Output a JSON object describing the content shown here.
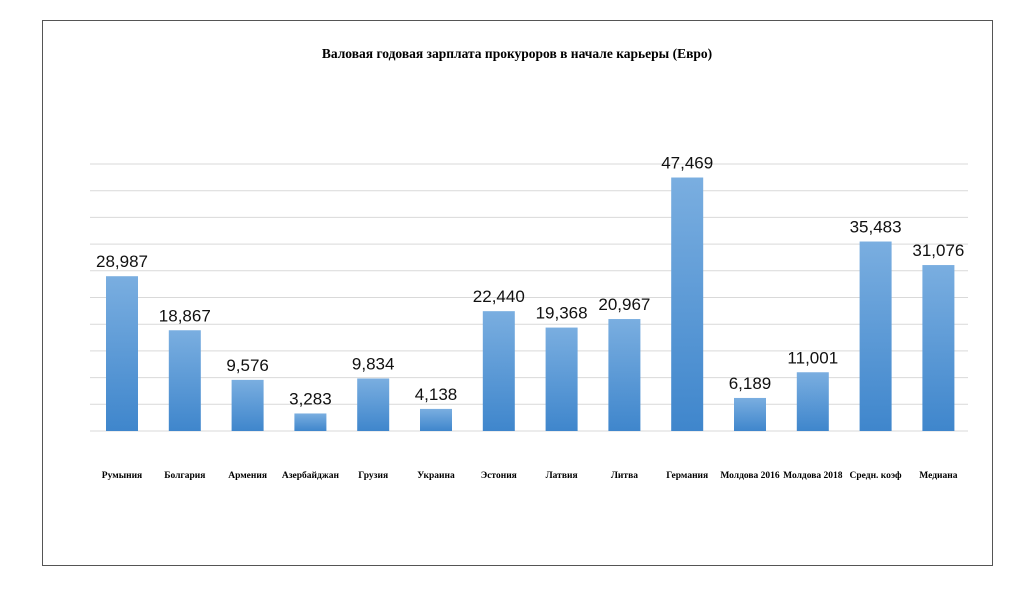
{
  "chart_data": {
    "type": "bar",
    "title": "Валовая годовая зарплата прокуроров в начале карьеры (Евро)",
    "xlabel": "",
    "ylabel": "",
    "categories": [
      "Румыния",
      "Болгария",
      "Армения",
      "Азербайджан",
      "Грузия",
      "Украина",
      "Эстония",
      "Латвия",
      "Литва",
      "Германия",
      "Молдова 2016",
      "Молдова 2018",
      "Средн. коэф",
      "Медиана"
    ],
    "values": [
      28987,
      18867,
      9576,
      3283,
      9834,
      4138,
      22440,
      19368,
      20967,
      47469,
      6189,
      11001,
      35483,
      31076
    ],
    "value_labels": [
      "28,987",
      "18,867",
      "9,576",
      "3,283",
      "9,834",
      "4,138",
      "22,440",
      "19,368",
      "20,967",
      "47,469",
      "6,189",
      "11,001",
      "35,483",
      "31,076"
    ],
    "ylim": [
      0,
      50000
    ],
    "grid": true,
    "legend": "none",
    "bar_color": "#5b9bd5"
  }
}
